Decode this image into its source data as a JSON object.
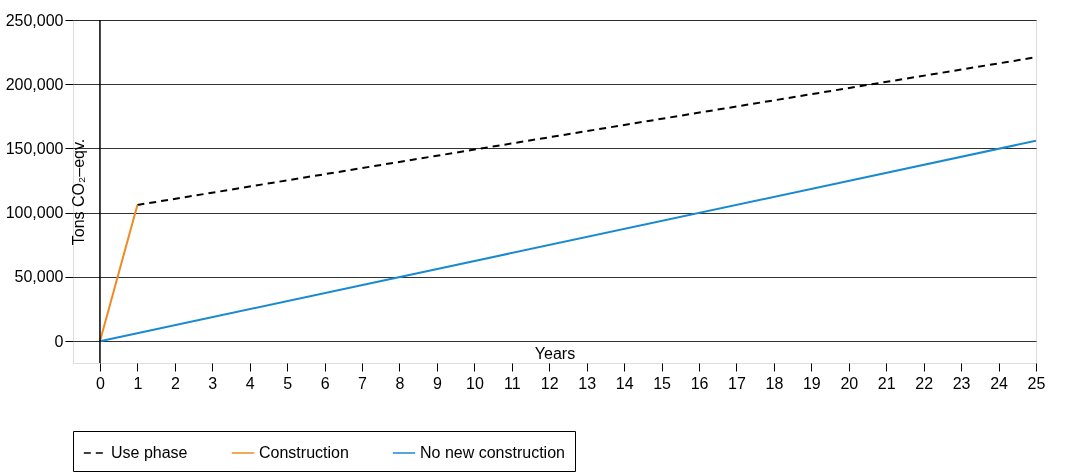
{
  "chart_data": {
    "type": "line",
    "xlabel": "Years",
    "ylabel": "Tons CO₂–eqv.",
    "xlim": [
      -0.72,
      25
    ],
    "xticks": [
      0,
      1,
      2,
      3,
      4,
      5,
      6,
      7,
      8,
      9,
      10,
      11,
      12,
      13,
      14,
      15,
      16,
      17,
      18,
      19,
      20,
      21,
      22,
      23,
      24,
      25
    ],
    "ylim": [
      -17000,
      250000
    ],
    "yticks": [
      0,
      {
        "value": 50000,
        "label": "50,000"
      },
      {
        "value": 100000,
        "label": "100,000"
      },
      {
        "value": 150000,
        "label": "150,000"
      },
      {
        "value": 200000,
        "label": "200,000"
      },
      {
        "value": 250000,
        "label": "250,000"
      }
    ],
    "grid": "y",
    "legend": "bottom",
    "ref_lines": [
      {
        "axis": "x",
        "value": 0,
        "color": "#000000"
      }
    ],
    "series": [
      {
        "name": "Use phase",
        "color": "#000000",
        "line_style": "dashed",
        "x": [
          1,
          25
        ],
        "values": [
          106000,
          221000
        ]
      },
      {
        "name": "Construction",
        "color": "#f08a24",
        "line_style": "solid",
        "x": [
          0,
          1
        ],
        "values": [
          0,
          106000
        ]
      },
      {
        "name": "No new construction",
        "color": "#1a8ad0",
        "line_style": "solid",
        "x": [
          0,
          25
        ],
        "values": [
          0,
          156000
        ]
      }
    ]
  }
}
